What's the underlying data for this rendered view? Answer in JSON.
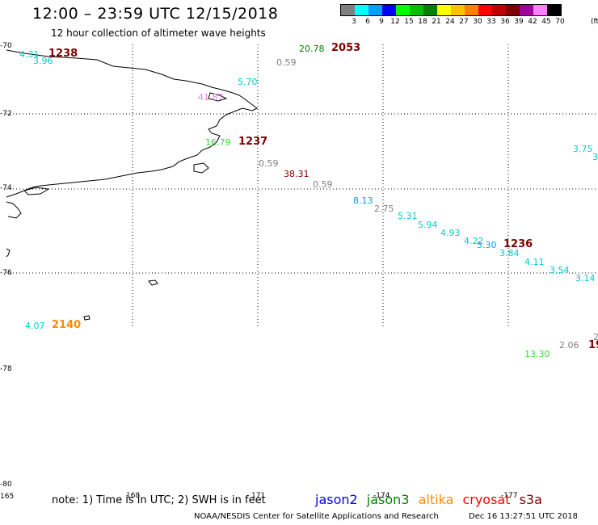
{
  "header": {
    "title": "12:00 – 23:59 UTC 12/15/2018",
    "subtitle": "12 hour collection of altimeter wave heights"
  },
  "legend": {
    "unit": "(ft)",
    "bins": [
      {
        "label": "3",
        "color": "#808080"
      },
      {
        "label": "6",
        "color": "#00ffff"
      },
      {
        "label": "9",
        "color": "#00a0ff"
      },
      {
        "label": "12",
        "color": "#0000ff"
      },
      {
        "label": "15",
        "color": "#00ff00"
      },
      {
        "label": "18",
        "color": "#00c000"
      },
      {
        "label": "21",
        "color": "#008000"
      },
      {
        "label": "24",
        "color": "#ffff00"
      },
      {
        "label": "27",
        "color": "#ffc000"
      },
      {
        "label": "30",
        "color": "#ff8000"
      },
      {
        "label": "33",
        "color": "#ff0000"
      },
      {
        "label": "36",
        "color": "#c00000"
      },
      {
        "label": "39",
        "color": "#800000"
      },
      {
        "label": "42",
        "color": "#a000a0"
      },
      {
        "label": "45",
        "color": "#ff80ff"
      },
      {
        "label": "70",
        "color": "#000000"
      }
    ]
  },
  "axes": {
    "lat_labels": [
      "-70",
      "-72",
      "-74",
      "-76",
      "-78",
      "-80"
    ],
    "lon_labels": [
      "165",
      "168",
      "171",
      "-174",
      "-177"
    ]
  },
  "observations": [
    {
      "text": "4.31",
      "color": "#00cccc"
    },
    {
      "text": "3.96",
      "color": "#00cccc"
    },
    {
      "text": "20.78",
      "color": "#008000"
    },
    {
      "text": "0.59",
      "color": "#808080"
    },
    {
      "text": "5.70",
      "color": "#00cccc"
    },
    {
      "text": "41.87",
      "color": "#dd88dd"
    },
    {
      "text": "16.79",
      "color": "#33dd33"
    },
    {
      "text": "0.59",
      "color": "#808080"
    },
    {
      "text": "38.31",
      "color": "#800000"
    },
    {
      "text": "0.59",
      "color": "#808080"
    },
    {
      "text": "8.13",
      "color": "#00a0ff"
    },
    {
      "text": "2.75",
      "color": "#808080"
    },
    {
      "text": "5.31",
      "color": "#00cccc"
    },
    {
      "text": "5.94",
      "color": "#00cccc"
    },
    {
      "text": "4.93",
      "color": "#00cccc"
    },
    {
      "text": "4.22",
      "color": "#00cccc"
    },
    {
      "text": "5.30",
      "color": "#00a0ff"
    },
    {
      "text": "3.84",
      "color": "#00cccc"
    },
    {
      "text": "4.11",
      "color": "#00cccc"
    },
    {
      "text": "3.54",
      "color": "#00cccc"
    },
    {
      "text": "3.14",
      "color": "#00cccc"
    },
    {
      "text": "3.75",
      "color": "#00cccc"
    },
    {
      "text": "3",
      "color": "#00cccc"
    },
    {
      "text": "4.07",
      "color": "#00cccc"
    },
    {
      "text": "13.30",
      "color": "#33dd33"
    },
    {
      "text": "2.06",
      "color": "#808080"
    },
    {
      "text": "2",
      "color": "#808080"
    }
  ],
  "time_markers": [
    {
      "text": "1238",
      "color": "#800000"
    },
    {
      "text": "2053",
      "color": "#800000"
    },
    {
      "text": "1237",
      "color": "#800000"
    },
    {
      "text": "1236",
      "color": "#800000"
    },
    {
      "text": "2140",
      "color": "#ff8c00"
    },
    {
      "text": "19",
      "color": "#800000"
    }
  ],
  "footer": {
    "note": "note:  1) Time is in UTC;  2) SWH is in feet",
    "satellites": [
      {
        "name": "jason2",
        "color": "#0000ff"
      },
      {
        "name": "jason3",
        "color": "#008000"
      },
      {
        "name": "altika",
        "color": "#ff8c00"
      },
      {
        "name": "cryosat",
        "color": "#ff0000"
      },
      {
        "name": "s3a",
        "color": "#800000"
      }
    ],
    "credit": "NOAA/NESDIS Center for Satellite Applications and Research",
    "timestamp": "Dec 16 13:27:51 UTC 2018"
  }
}
